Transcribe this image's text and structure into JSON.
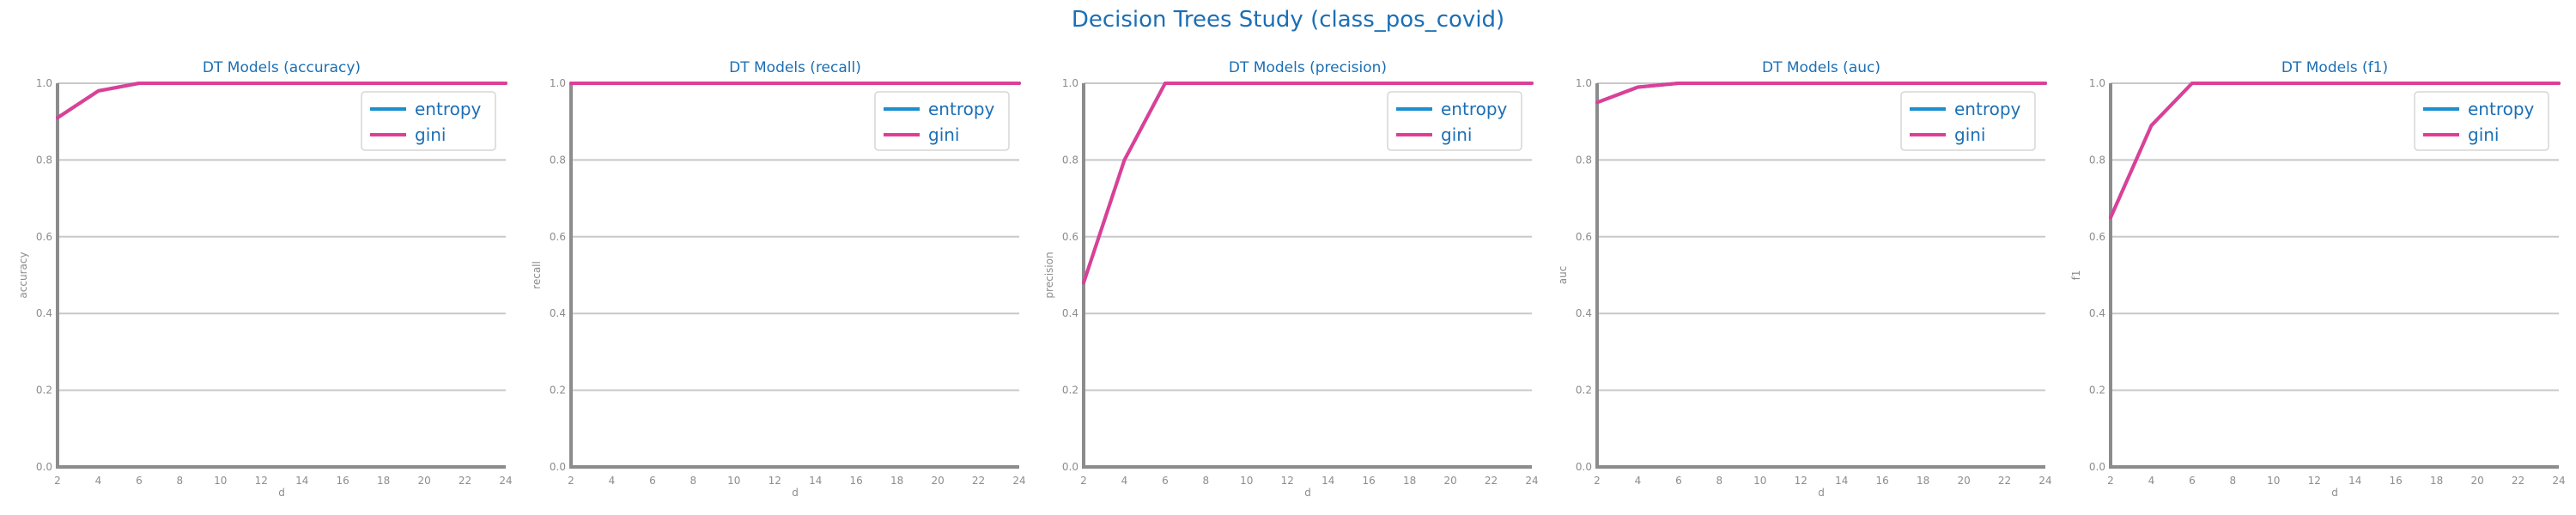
{
  "suptitle": "Decision Trees Study (class_pos_covid)",
  "colors": {
    "title": "#1b6fb5",
    "entropy": "#1a8fd0",
    "gini": "#dd3f97",
    "axis": "#8c8c8c",
    "grid": "#c8c8c8",
    "tick_text": "#8c8c8c",
    "legend_text": "#1b6fb5"
  },
  "chart_data": [
    {
      "type": "line",
      "title": "DT Models (accuracy)",
      "xlabel": "d",
      "ylabel": "accuracy",
      "x": [
        2,
        4,
        6,
        8,
        10,
        12,
        14,
        16,
        18,
        20,
        22,
        24
      ],
      "xlim": [
        2,
        24
      ],
      "ylim": [
        0.0,
        1.0
      ],
      "xticks": [
        "2",
        "4",
        "6",
        "8",
        "10",
        "12",
        "14",
        "16",
        "18",
        "20",
        "22",
        "24"
      ],
      "yticks": [
        "0.0",
        "0.2",
        "0.4",
        "0.6",
        "0.8",
        "1.0"
      ],
      "grid": "horizontal",
      "legend_position": "top-right",
      "series": [
        {
          "name": "entropy",
          "values": [
            0.91,
            0.98,
            1.0,
            1.0,
            1.0,
            1.0,
            1.0,
            1.0,
            1.0,
            1.0,
            1.0,
            1.0
          ]
        },
        {
          "name": "gini",
          "values": [
            0.91,
            0.98,
            1.0,
            1.0,
            1.0,
            1.0,
            1.0,
            1.0,
            1.0,
            1.0,
            1.0,
            1.0
          ]
        }
      ]
    },
    {
      "type": "line",
      "title": "DT Models (recall)",
      "xlabel": "d",
      "ylabel": "recall",
      "x": [
        2,
        4,
        6,
        8,
        10,
        12,
        14,
        16,
        18,
        20,
        22,
        24
      ],
      "xlim": [
        2,
        24
      ],
      "ylim": [
        0.0,
        1.0
      ],
      "xticks": [
        "2",
        "4",
        "6",
        "8",
        "10",
        "12",
        "14",
        "16",
        "18",
        "20",
        "22",
        "24"
      ],
      "yticks": [
        "0.0",
        "0.2",
        "0.4",
        "0.6",
        "0.8",
        "1.0"
      ],
      "grid": "horizontal",
      "legend_position": "top-right",
      "series": [
        {
          "name": "entropy",
          "values": [
            1.0,
            1.0,
            1.0,
            1.0,
            1.0,
            1.0,
            1.0,
            1.0,
            1.0,
            1.0,
            1.0,
            1.0
          ]
        },
        {
          "name": "gini",
          "values": [
            1.0,
            1.0,
            1.0,
            1.0,
            1.0,
            1.0,
            1.0,
            1.0,
            1.0,
            1.0,
            1.0,
            1.0
          ]
        }
      ]
    },
    {
      "type": "line",
      "title": "DT Models (precision)",
      "xlabel": "d",
      "ylabel": "precision",
      "x": [
        2,
        4,
        6,
        8,
        10,
        12,
        14,
        16,
        18,
        20,
        22,
        24
      ],
      "xlim": [
        2,
        24
      ],
      "ylim": [
        0.0,
        1.0
      ],
      "xticks": [
        "2",
        "4",
        "6",
        "8",
        "10",
        "12",
        "14",
        "16",
        "18",
        "20",
        "22",
        "24"
      ],
      "yticks": [
        "0.0",
        "0.2",
        "0.4",
        "0.6",
        "0.8",
        "1.0"
      ],
      "grid": "horizontal",
      "legend_position": "top-right",
      "series": [
        {
          "name": "entropy",
          "values": [
            0.48,
            0.8,
            1.0,
            1.0,
            1.0,
            1.0,
            1.0,
            1.0,
            1.0,
            1.0,
            1.0,
            1.0
          ]
        },
        {
          "name": "gini",
          "values": [
            0.48,
            0.8,
            1.0,
            1.0,
            1.0,
            1.0,
            1.0,
            1.0,
            1.0,
            1.0,
            1.0,
            1.0
          ]
        }
      ]
    },
    {
      "type": "line",
      "title": "DT Models (auc)",
      "xlabel": "d",
      "ylabel": "auc",
      "x": [
        2,
        4,
        6,
        8,
        10,
        12,
        14,
        16,
        18,
        20,
        22,
        24
      ],
      "xlim": [
        2,
        24
      ],
      "ylim": [
        0.0,
        1.0
      ],
      "xticks": [
        "2",
        "4",
        "6",
        "8",
        "10",
        "12",
        "14",
        "16",
        "18",
        "20",
        "22",
        "24"
      ],
      "yticks": [
        "0.0",
        "0.2",
        "0.4",
        "0.6",
        "0.8",
        "1.0"
      ],
      "grid": "horizontal",
      "legend_position": "top-right",
      "series": [
        {
          "name": "entropy",
          "values": [
            0.95,
            0.99,
            1.0,
            1.0,
            1.0,
            1.0,
            1.0,
            1.0,
            1.0,
            1.0,
            1.0,
            1.0
          ]
        },
        {
          "name": "gini",
          "values": [
            0.95,
            0.99,
            1.0,
            1.0,
            1.0,
            1.0,
            1.0,
            1.0,
            1.0,
            1.0,
            1.0,
            1.0
          ]
        }
      ]
    },
    {
      "type": "line",
      "title": "DT Models (f1)",
      "xlabel": "d",
      "ylabel": "f1",
      "x": [
        2,
        4,
        6,
        8,
        10,
        12,
        14,
        16,
        18,
        20,
        22,
        24
      ],
      "xlim": [
        2,
        24
      ],
      "ylim": [
        0.0,
        1.0
      ],
      "xticks": [
        "2",
        "4",
        "6",
        "8",
        "10",
        "12",
        "14",
        "16",
        "18",
        "20",
        "22",
        "24"
      ],
      "yticks": [
        "0.0",
        "0.2",
        "0.4",
        "0.6",
        "0.8",
        "1.0"
      ],
      "grid": "horizontal",
      "legend_position": "top-right",
      "series": [
        {
          "name": "entropy",
          "values": [
            0.65,
            0.89,
            1.0,
            1.0,
            1.0,
            1.0,
            1.0,
            1.0,
            1.0,
            1.0,
            1.0,
            1.0
          ]
        },
        {
          "name": "gini",
          "values": [
            0.65,
            0.89,
            1.0,
            1.0,
            1.0,
            1.0,
            1.0,
            1.0,
            1.0,
            1.0,
            1.0,
            1.0
          ]
        }
      ]
    }
  ]
}
